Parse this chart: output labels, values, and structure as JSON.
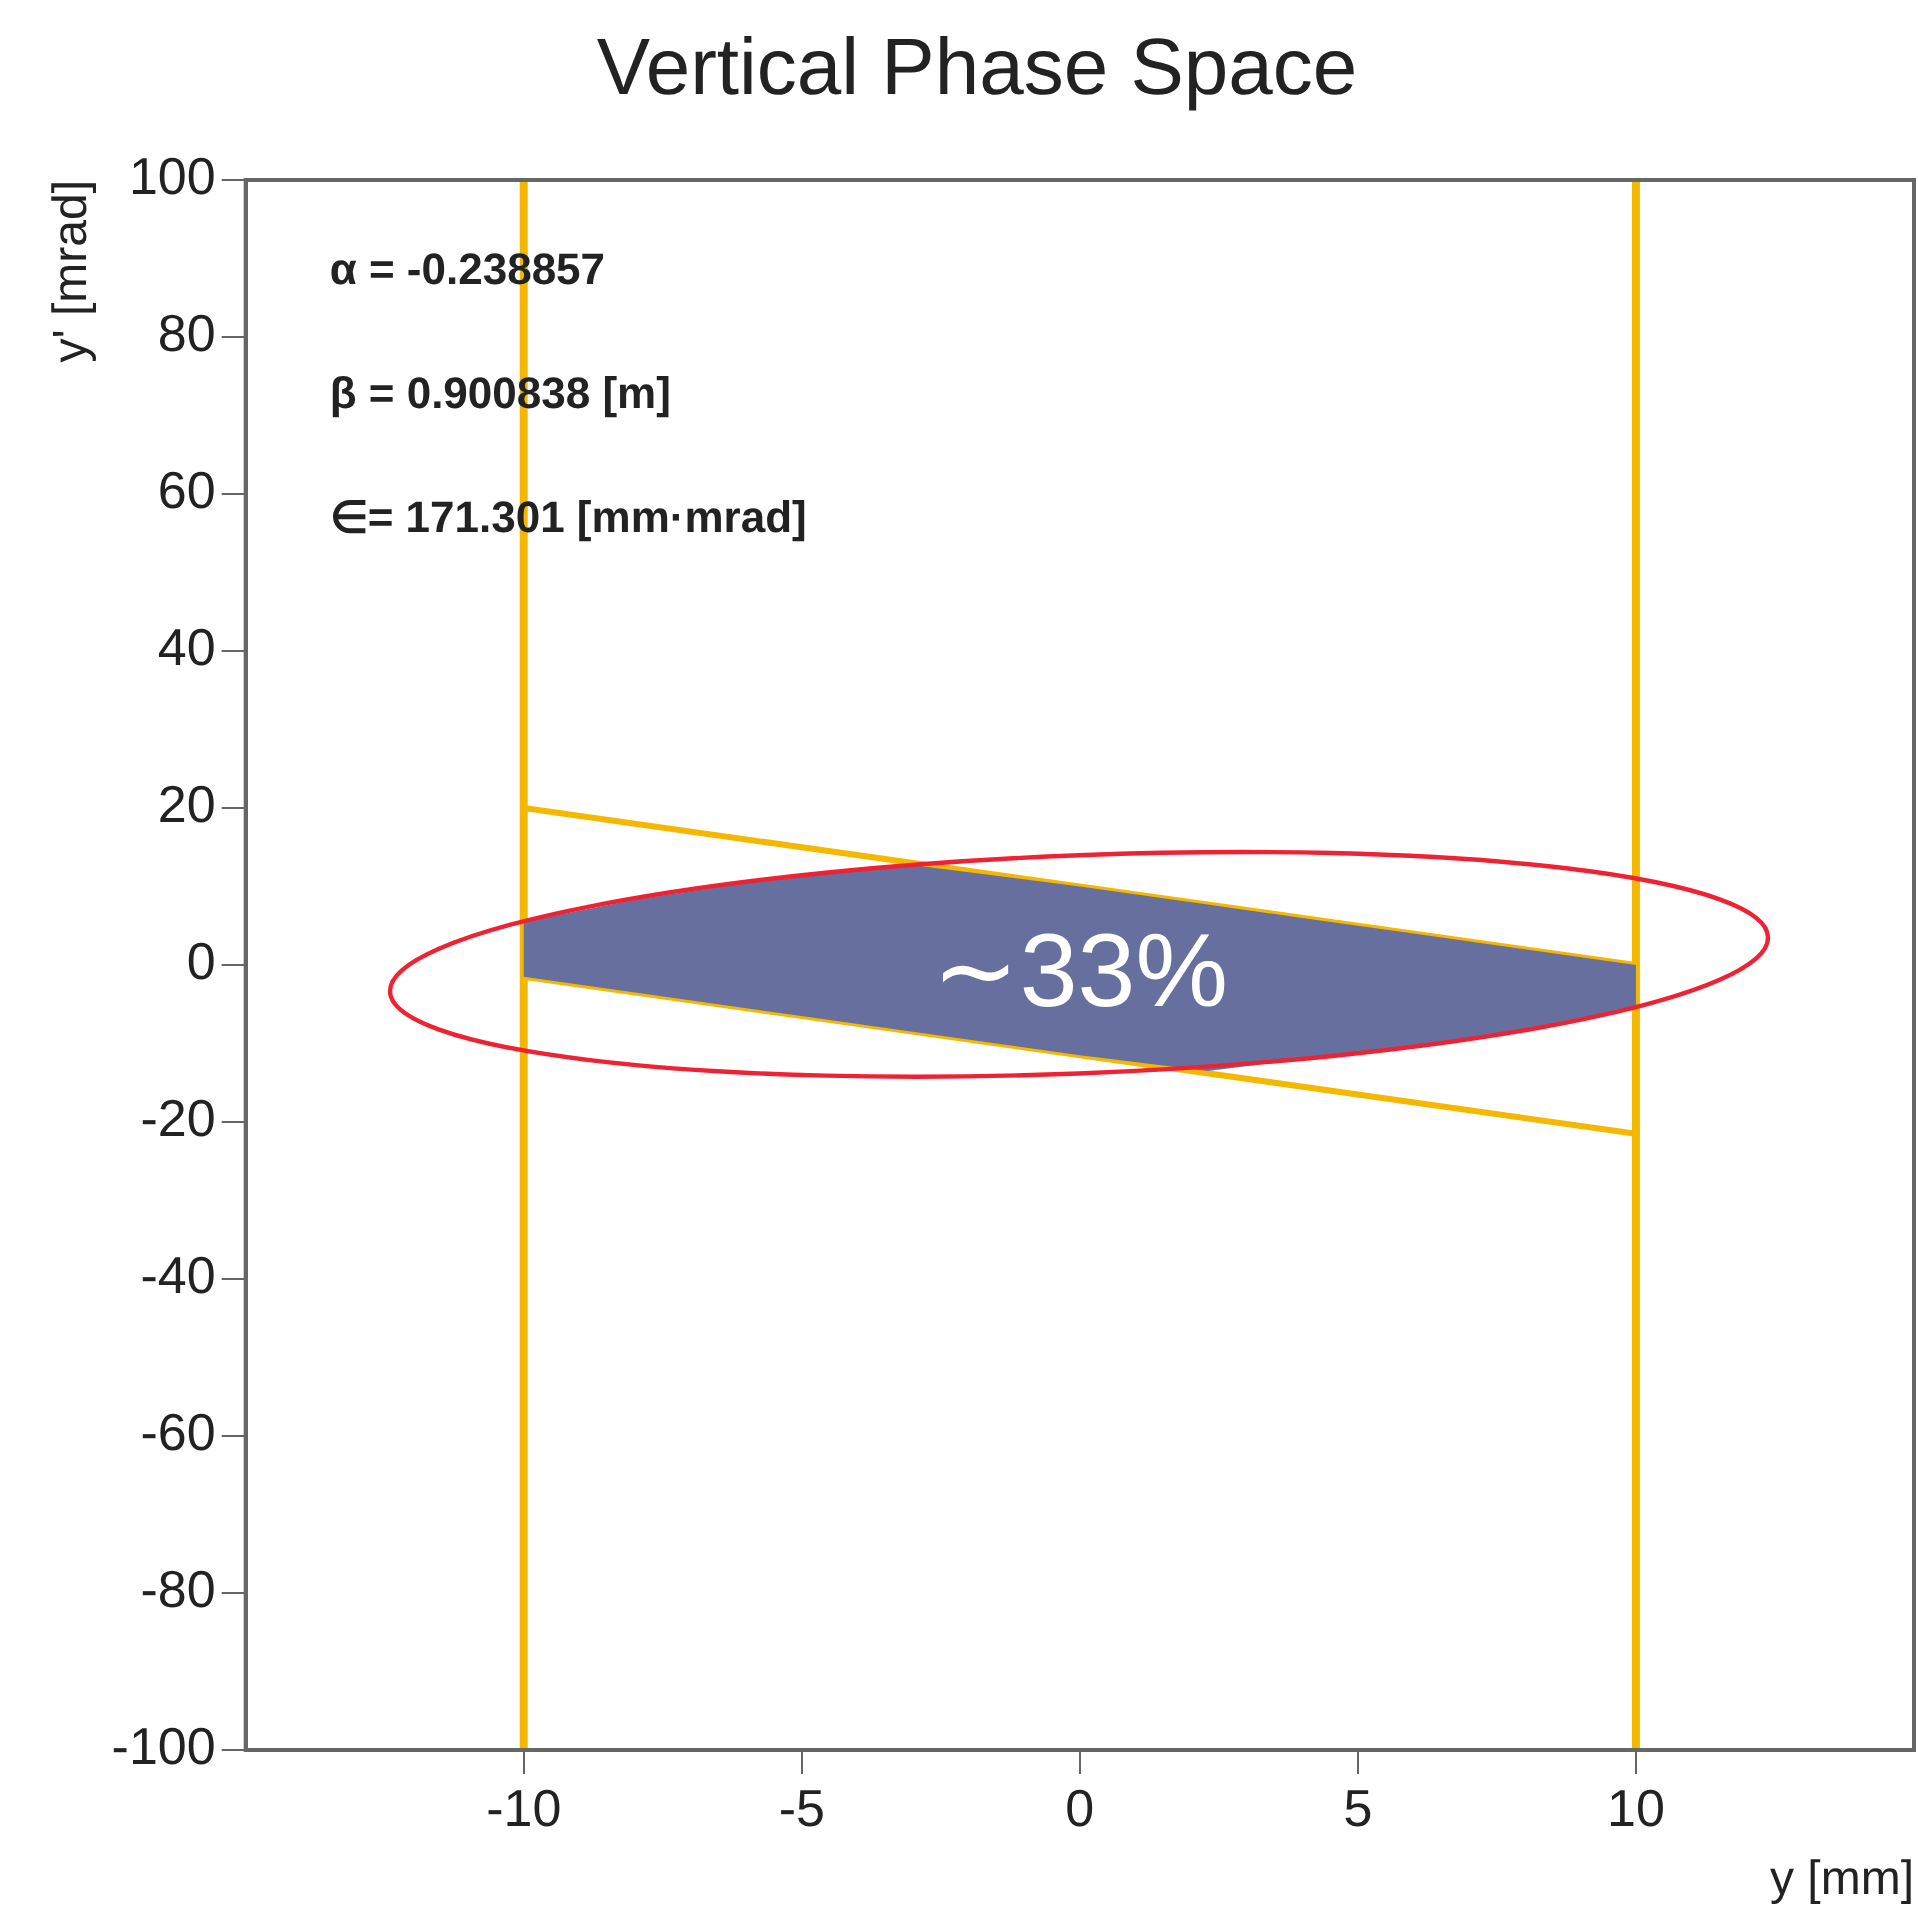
{
  "chart_data": {
    "type": "line",
    "title": "Vertical Phase Space",
    "xlabel": "y [mm]",
    "ylabel": "y' [mrad]",
    "xlim": [
      -15,
      15
    ],
    "xticks": [
      -10,
      -5,
      0,
      5,
      10
    ],
    "ylim": [
      -100,
      100
    ],
    "yticks": [
      -100,
      -80,
      -60,
      -40,
      -20,
      0,
      20,
      40,
      60,
      80,
      100
    ],
    "grid": false,
    "legend": false,
    "marker": "none",
    "annotations": [
      "α = -0.238857",
      "β = 0.900838 [m]",
      "∈= 171.301 [mm·mrad]",
      "∼33%"
    ],
    "ref_lines": [
      {
        "axis": "x",
        "value": -10,
        "color": "#f5b800"
      },
      {
        "axis": "x",
        "value": 10,
        "color": "#f5b800"
      }
    ],
    "series": [
      {
        "type": "area",
        "color": "#666f9e",
        "x": [
          -10,
          -8,
          -6,
          -3.2,
          0,
          2.3,
          4,
          6,
          8,
          10,
          10,
          8,
          6,
          4,
          2.3,
          0,
          -3.2,
          -6,
          -8,
          -10
        ],
        "values": [
          5.5,
          8.3,
          10.5,
          12.9,
          10,
          7.7,
          6,
          4,
          2,
          0,
          -5.5,
          -8.3,
          -10.5,
          -12,
          -13.5,
          -11.5,
          -8.3,
          -5.5,
          -3.5,
          -1.5
        ]
      },
      {
        "color": "#f5b800",
        "x": [
          -10,
          10
        ],
        "values": [
          20,
          0
        ]
      },
      {
        "color": "#f5b800",
        "x": [
          -10,
          10
        ],
        "values": [
          -1.5,
          -21.5
        ]
      }
    ]
  }
}
